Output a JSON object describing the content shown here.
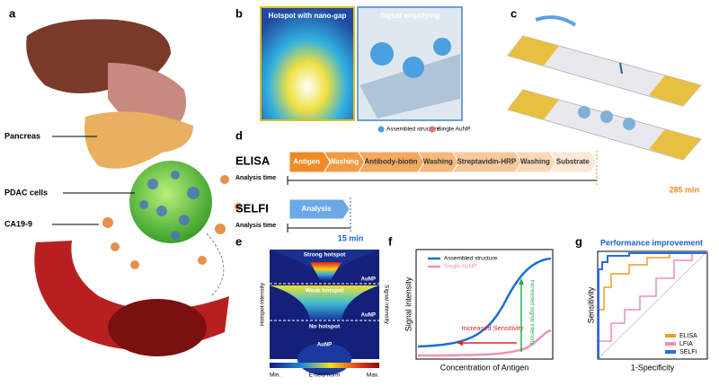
{
  "panels": {
    "a": {
      "label": "a",
      "pancreas": "Pancreas",
      "cells": "PDAC cells",
      "marker": "CA19-9"
    },
    "b": {
      "label": "b",
      "left_title": "Hotspot with nano-gap",
      "right_title": "Signal amplifying",
      "legend": [
        "Assembled structure",
        "Single AuNP"
      ]
    },
    "c": {
      "label": "c"
    },
    "d": {
      "label": "d",
      "elisa": {
        "name": "ELISA",
        "steps": [
          "Antigen",
          "Washing",
          "Antibody-biotin",
          "Washing",
          "Streptavidin-HRP",
          "Washing",
          "Substrate"
        ],
        "time_label": "Analysis time",
        "time": "285 min"
      },
      "selfi": {
        "name": "SELFI",
        "steps": [
          "Analysis"
        ],
        "time_label": "Analysis time",
        "time": "15 min"
      }
    },
    "e": {
      "label": "e",
      "sections": [
        {
          "title": "Strong hotspot",
          "particle": "AuNP"
        },
        {
          "title": "Weak hotspot",
          "particle": "AuNP"
        },
        {
          "title": "No hotspot",
          "particle": "AuNP"
        }
      ],
      "left_axis": "Hotspot intensity",
      "right_axis": "Signal intensity",
      "colorbar": [
        "Min.",
        "E-field norm",
        "Max."
      ]
    },
    "f": {
      "label": "f",
      "legend": [
        "Assembled structure",
        "Single AuNP"
      ],
      "arrow_h": "Increased Sensitivity",
      "arrow_v": "Increased signal intensity",
      "ylabel": "Signal intensity",
      "xlabel": "Concentration of Antigen"
    },
    "g": {
      "label": "g",
      "title": "Performance improvement",
      "ylabel": "Sensitivity",
      "xlabel": "1-Specificity",
      "legend": [
        "ELISA",
        "LFIA",
        "SELFI"
      ]
    }
  }
}
